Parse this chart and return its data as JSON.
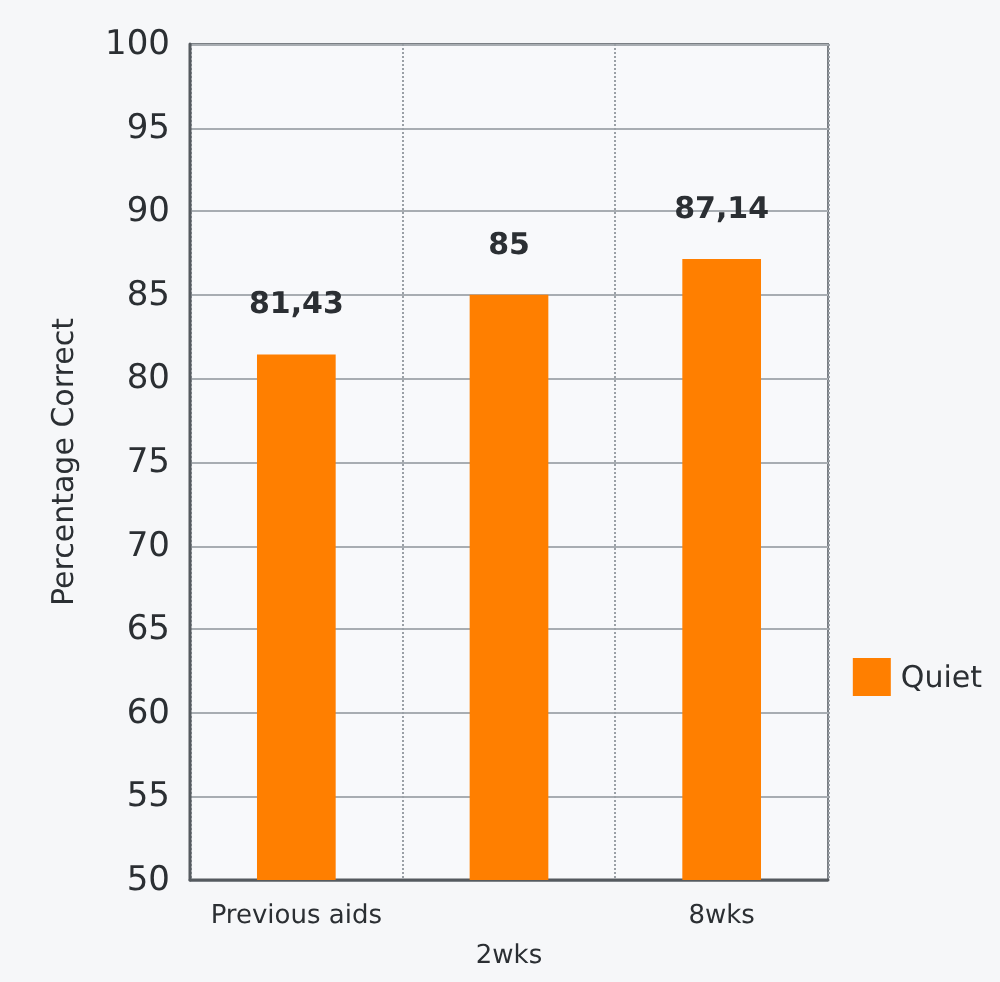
{
  "chart_data": {
    "type": "bar",
    "ylabel": "Percentage Correct",
    "categories": [
      "Previous aids",
      "2wks",
      "8wks"
    ],
    "series": [
      {
        "name": "Quiet",
        "color": "#ff7f00",
        "values": [
          81.43,
          85,
          87.14
        ],
        "value_labels": [
          "81,43",
          "85",
          "87,14"
        ]
      }
    ],
    "ylim": [
      50,
      100
    ],
    "yticks": [
      50,
      55,
      60,
      65,
      70,
      75,
      80,
      85,
      90,
      95,
      100
    ],
    "grid": true,
    "legend": "right"
  }
}
